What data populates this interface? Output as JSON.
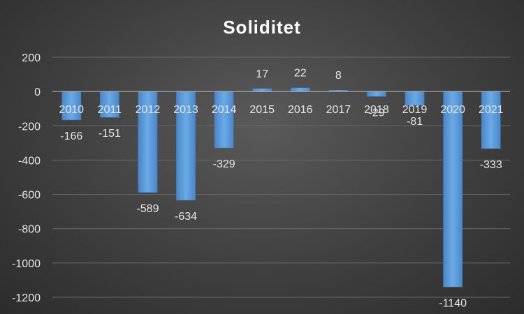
{
  "chart_data": {
    "type": "bar",
    "title": "Soliditet",
    "xlabel": "",
    "ylabel": "",
    "categories": [
      "2010",
      "2011",
      "2012",
      "2013",
      "2014",
      "2015",
      "2016",
      "2017",
      "2018",
      "2019",
      "2020",
      "2021"
    ],
    "values": [
      -166,
      -151,
      -589,
      -634,
      -329,
      17,
      22,
      8,
      -29,
      -81,
      -1140,
      -333
    ],
    "data_labels": [
      "-166",
      "-151",
      "-589",
      "-634",
      "-329",
      "17",
      "22",
      "8",
      "-29",
      "-81",
      "-1140",
      "-333"
    ],
    "ylim": [
      -1200,
      200
    ],
    "yticks": [
      200,
      0,
      -200,
      -400,
      -600,
      -800,
      -1000,
      -1200
    ],
    "ytick_labels": [
      "200",
      "0",
      "-200",
      "-400",
      "-600",
      "-800",
      "-1000",
      "-1200"
    ],
    "grid": true,
    "legend": "none",
    "bar_color": "#5b9bd5"
  }
}
